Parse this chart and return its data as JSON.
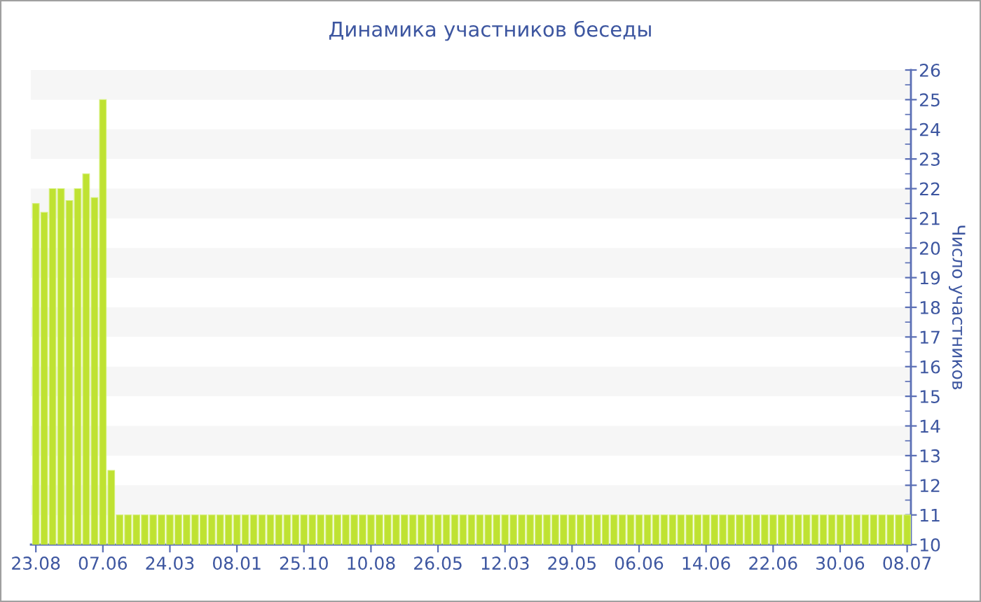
{
  "chart_data": {
    "type": "bar",
    "title": "Динамика участников беседы",
    "ylabel": "Число участников",
    "categories": [
      "23.08",
      null,
      null,
      null,
      null,
      null,
      null,
      null,
      "07.06",
      null,
      null,
      null,
      null,
      null,
      null,
      null,
      "24.03",
      null,
      null,
      null,
      null,
      null,
      null,
      null,
      "08.01",
      null,
      null,
      null,
      null,
      null,
      null,
      null,
      "25.10",
      null,
      null,
      null,
      null,
      null,
      null,
      null,
      "10.08",
      null,
      null,
      null,
      null,
      null,
      null,
      null,
      "26.05",
      null,
      null,
      null,
      null,
      null,
      null,
      null,
      "12.03",
      null,
      null,
      null,
      null,
      null,
      null,
      null,
      "29.05",
      null,
      null,
      null,
      null,
      null,
      null,
      null,
      "06.06",
      null,
      null,
      null,
      null,
      null,
      null,
      null,
      "14.06",
      null,
      null,
      null,
      null,
      null,
      null,
      null,
      "22.06",
      null,
      null,
      null,
      null,
      null,
      null,
      null,
      "30.06",
      null,
      null,
      null,
      null,
      null,
      null,
      null,
      "08.07"
    ],
    "values": [
      21.5,
      21.2,
      22,
      22,
      21.6,
      22,
      22.5,
      21.7,
      25,
      12.5,
      11,
      11,
      11,
      11,
      11,
      11,
      11,
      11,
      11,
      11,
      11,
      11,
      11,
      11,
      11,
      11,
      11,
      11,
      11,
      11,
      11,
      11,
      11,
      11,
      11,
      11,
      11,
      11,
      11,
      11,
      11,
      11,
      11,
      11,
      11,
      11,
      11,
      11,
      11,
      11,
      11,
      11,
      11,
      11,
      11,
      11,
      11,
      11,
      11,
      11,
      11,
      11,
      11,
      11,
      11,
      11,
      11,
      11,
      11,
      11,
      11,
      11,
      11,
      11,
      11,
      11,
      11,
      11,
      11,
      11,
      11,
      11,
      11,
      11,
      11,
      11,
      11,
      11,
      11,
      11,
      11,
      11,
      11,
      11,
      11,
      11,
      11,
      11,
      11,
      11,
      11,
      11,
      11,
      11,
      11
    ],
    "color": "#bfe232",
    "ylim": [
      10,
      26
    ],
    "yticks": [
      10,
      11,
      12,
      13,
      14,
      15,
      16,
      17,
      18,
      19,
      20,
      21,
      22,
      23,
      24,
      25,
      26
    ],
    "bands": [
      {
        "axis": "y",
        "from": 11,
        "to": 12,
        "color": "#f6f6f6"
      },
      {
        "axis": "y",
        "from": 13,
        "to": 14,
        "color": "#f6f6f6"
      },
      {
        "axis": "y",
        "from": 15,
        "to": 16,
        "color": "#f6f6f6"
      },
      {
        "axis": "y",
        "from": 17,
        "to": 18,
        "color": "#f6f6f6"
      },
      {
        "axis": "y",
        "from": 19,
        "to": 20,
        "color": "#f6f6f6"
      },
      {
        "axis": "y",
        "from": 21,
        "to": 22,
        "color": "#f6f6f6"
      },
      {
        "axis": "y",
        "from": 23,
        "to": 24,
        "color": "#f6f6f6"
      },
      {
        "axis": "y",
        "from": 25,
        "to": 26,
        "color": "#f6f6f6"
      }
    ]
  }
}
